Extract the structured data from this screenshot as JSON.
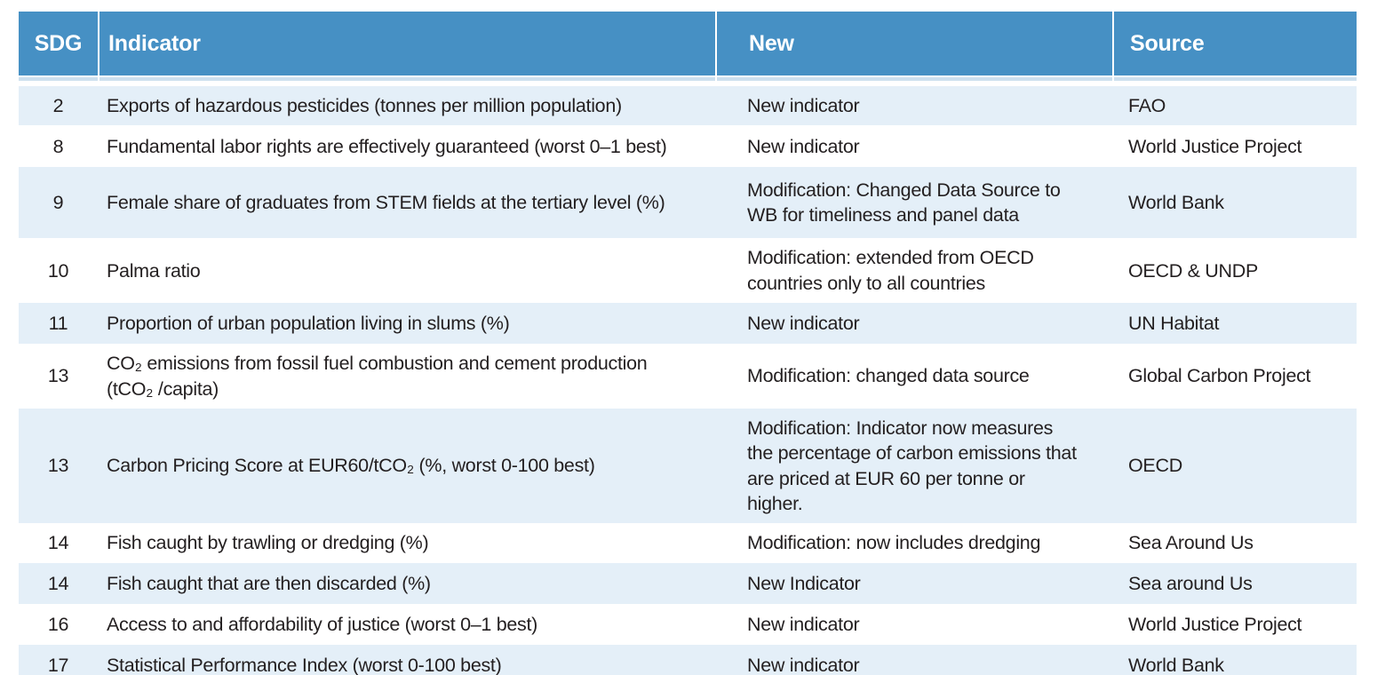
{
  "table": {
    "colors": {
      "header_bg": "#4690c4",
      "row_alt_bg": "#e4eff8",
      "strip": "#cde0ef",
      "text": "#231f20",
      "header_text": "#ffffff"
    },
    "columns": [
      {
        "key": "sdg",
        "label": "SDG"
      },
      {
        "key": "indicator",
        "label": "Indicator"
      },
      {
        "key": "new",
        "label": "New"
      },
      {
        "key": "source",
        "label": "Source"
      }
    ],
    "rows": [
      {
        "sdg": "2",
        "indicator": "Exports of hazardous pesticides (tonnes per million population)",
        "new": "New indicator",
        "source": "FAO"
      },
      {
        "sdg": "8",
        "indicator": "Fundamental labor rights are effectively guaranteed (worst 0–1 best)",
        "new": "New indicator",
        "source": "World Justice Project"
      },
      {
        "sdg": "9",
        "indicator": "Female share of graduates from STEM fields at the tertiary level (%)",
        "new": "Modification: Changed Data Source to\nWB for timeliness and panel data",
        "source": "World Bank"
      },
      {
        "sdg": "10",
        "indicator": "Palma ratio",
        "new": "Modification: extended from OECD\ncountries only to all countries",
        "source": "OECD & UNDP"
      },
      {
        "sdg": "11",
        "indicator": "Proportion of urban population living in slums (%)",
        "new": "New indicator",
        "source": "UN Habitat"
      },
      {
        "sdg": "13",
        "indicator": "CO₂ emissions from fossil fuel combustion and cement production\n(tCO₂ /capita)",
        "new": "Modification: changed data source",
        "source": "Global Carbon Project"
      },
      {
        "sdg": "13",
        "indicator": "Carbon Pricing Score at EUR60/tCO₂ (%, worst 0-100 best)",
        "new": "Modification: Indicator now measures\nthe percentage of carbon emissions that\nare priced at EUR 60 per tonne or higher.",
        "source": "OECD"
      },
      {
        "sdg": "14",
        "indicator": "Fish caught by trawling or dredging (%)",
        "new": "Modification: now includes dredging",
        "source": "Sea Around Us"
      },
      {
        "sdg": "14",
        "indicator": "Fish caught that are then discarded (%)",
        "new": "New Indicator",
        "source": "Sea around Us"
      },
      {
        "sdg": "16",
        "indicator": "Access to and affordability of justice (worst 0–1 best)",
        "new": "New indicator",
        "source": "World Justice Project"
      },
      {
        "sdg": "17",
        "indicator": "Statistical Performance Index (worst 0-100 best)",
        "new": "New indicator",
        "source": "World Bank"
      }
    ]
  }
}
